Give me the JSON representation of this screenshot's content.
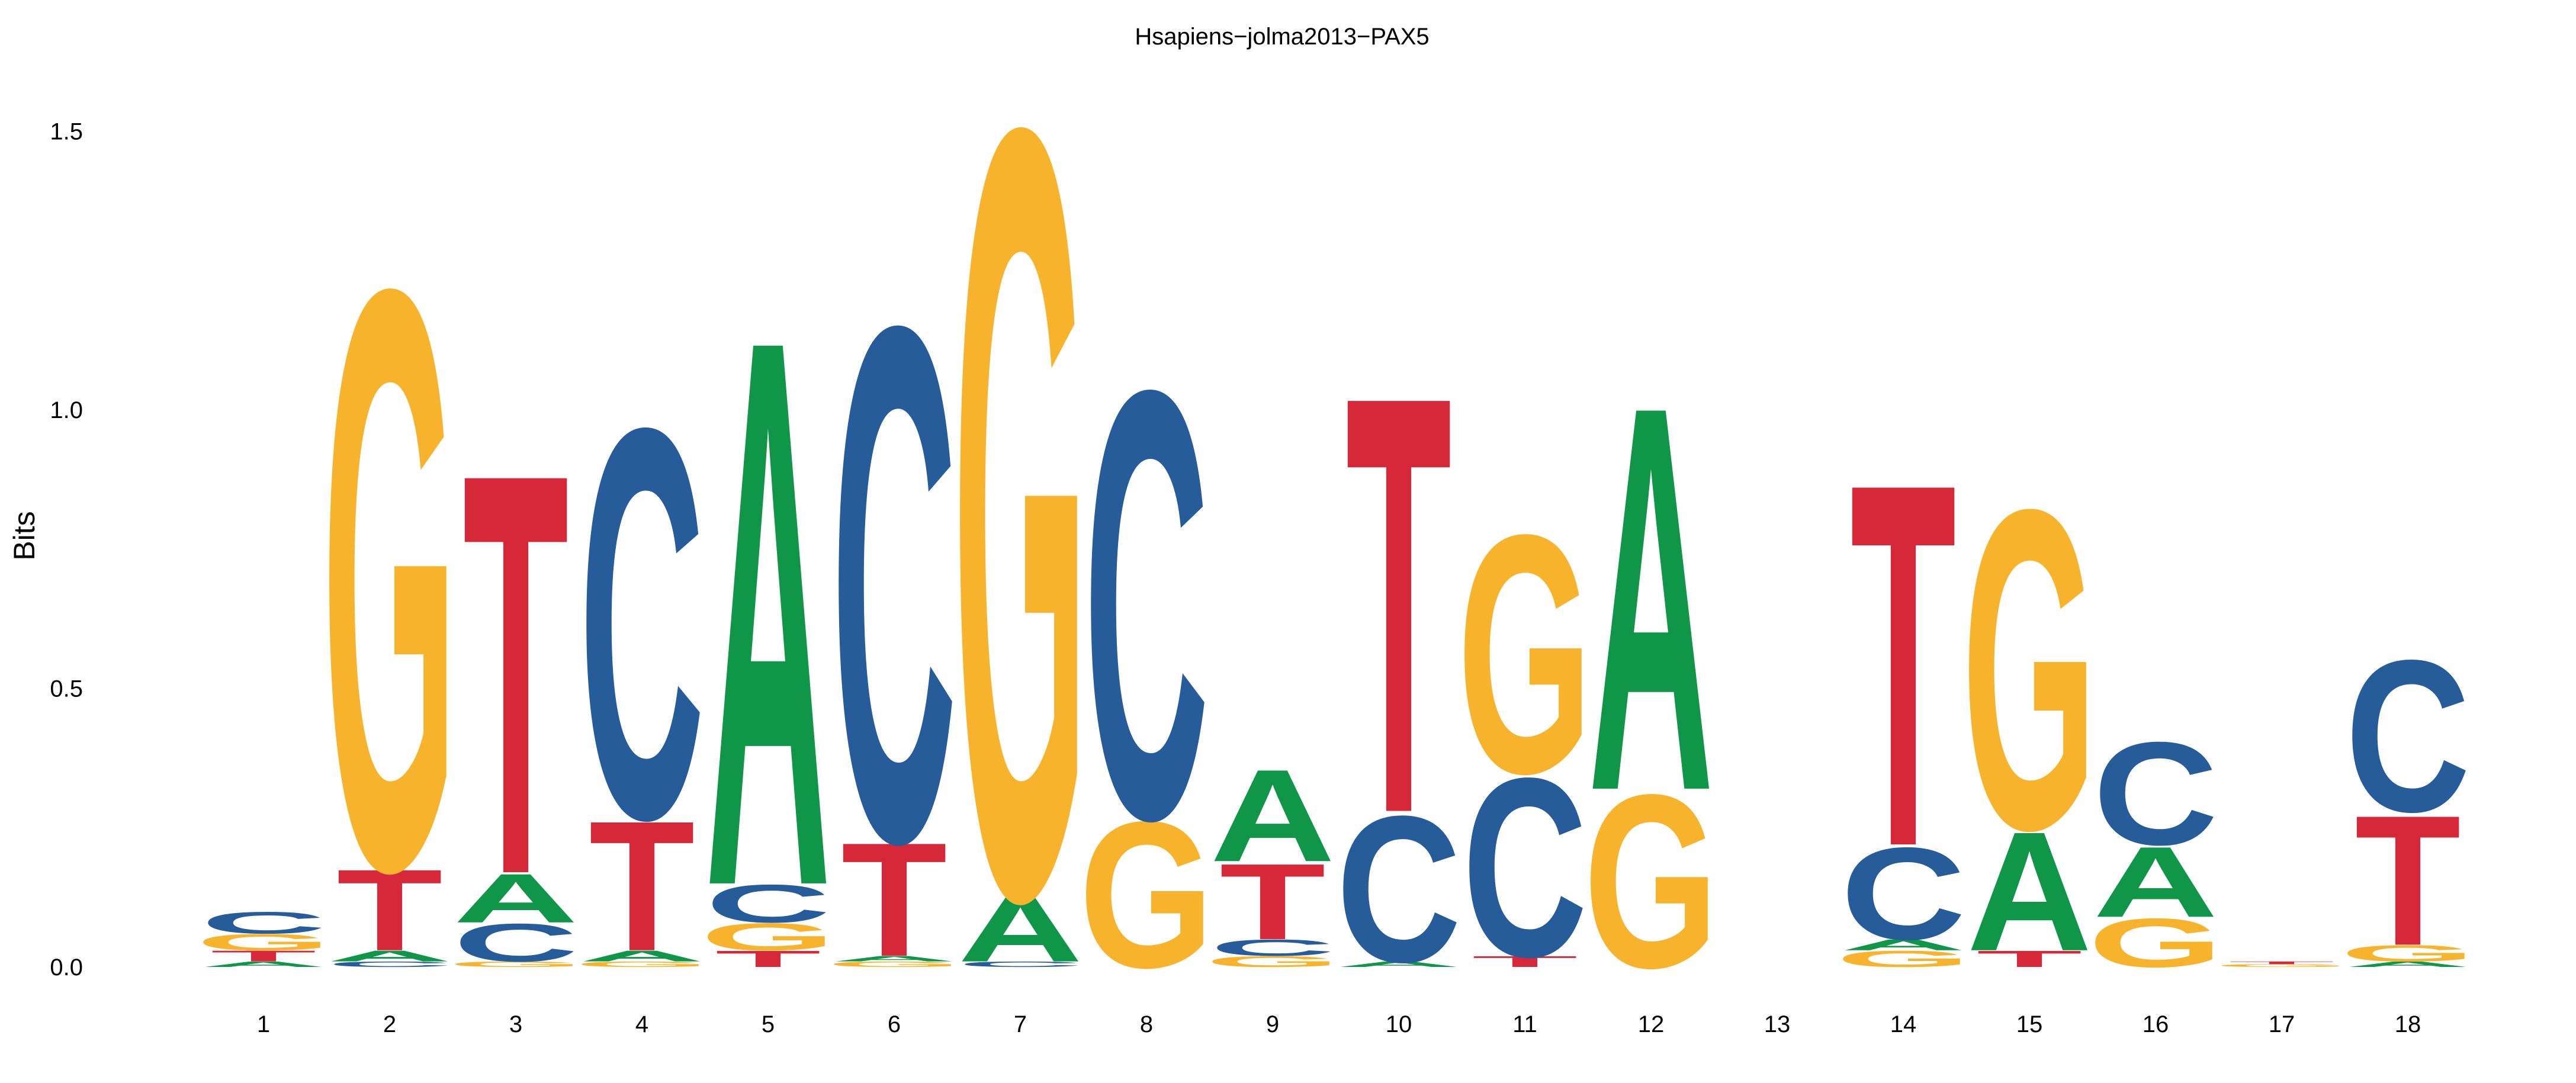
{
  "chart_data": {
    "type": "sequence-logo",
    "title": "Hsapiens−jolma2013−PAX5",
    "ylabel": "Bits",
    "xlabel": "",
    "ylim": [
      0,
      1.6
    ],
    "yticks": [
      0.0,
      0.5,
      1.0,
      1.5
    ],
    "ytick_labels": [
      "0.0",
      "0.5",
      "1.0",
      "1.5"
    ],
    "colors": {
      "A": "#109648",
      "C": "#255C99",
      "G": "#F7B32B",
      "T": "#D62839"
    },
    "positions": [
      {
        "pos": "1",
        "stack": [
          [
            "A",
            0.01
          ],
          [
            "T",
            0.02
          ],
          [
            "G",
            0.03
          ],
          [
            "C",
            0.04
          ]
        ]
      },
      {
        "pos": "2",
        "stack": [
          [
            "C",
            0.01
          ],
          [
            "A",
            0.02
          ],
          [
            "T",
            0.15
          ],
          [
            "G",
            1.07
          ]
        ]
      },
      {
        "pos": "3",
        "stack": [
          [
            "G",
            0.01
          ],
          [
            "C",
            0.07
          ],
          [
            "A",
            0.09
          ],
          [
            "T",
            0.74
          ]
        ]
      },
      {
        "pos": "4",
        "stack": [
          [
            "G",
            0.01
          ],
          [
            "A",
            0.02
          ],
          [
            "T",
            0.24
          ],
          [
            "C",
            0.72
          ]
        ]
      },
      {
        "pos": "5",
        "stack": [
          [
            "T",
            0.03
          ],
          [
            "G",
            0.05
          ],
          [
            "C",
            0.07
          ],
          [
            "A",
            1.01
          ]
        ]
      },
      {
        "pos": "6",
        "stack": [
          [
            "G",
            0.01
          ],
          [
            "A",
            0.01
          ],
          [
            "T",
            0.21
          ],
          [
            "C",
            0.95
          ]
        ]
      },
      {
        "pos": "7",
        "stack": [
          [
            "C",
            0.01
          ],
          [
            "A",
            0.12
          ],
          [
            "G",
            1.42
          ]
        ]
      },
      {
        "pos": "8",
        "stack": [
          [
            "G",
            0.27
          ],
          [
            "C",
            0.79
          ]
        ]
      },
      {
        "pos": "9",
        "stack": [
          [
            "G",
            0.02
          ],
          [
            "C",
            0.03
          ],
          [
            "T",
            0.14
          ],
          [
            "A",
            0.17
          ]
        ]
      },
      {
        "pos": "10",
        "stack": [
          [
            "A",
            0.01
          ],
          [
            "C",
            0.27
          ],
          [
            "T",
            0.77
          ]
        ]
      },
      {
        "pos": "11",
        "stack": [
          [
            "T",
            0.02
          ],
          [
            "C",
            0.33
          ],
          [
            "G",
            0.44
          ]
        ]
      },
      {
        "pos": "12",
        "stack": [
          [
            "G",
            0.32
          ],
          [
            "A",
            0.71
          ]
        ]
      },
      {
        "pos": "13",
        "stack": []
      },
      {
        "pos": "14",
        "stack": [
          [
            "G",
            0.03
          ],
          [
            "A",
            0.02
          ],
          [
            "C",
            0.17
          ],
          [
            "T",
            0.67
          ]
        ]
      },
      {
        "pos": "15",
        "stack": [
          [
            "T",
            0.03
          ],
          [
            "A",
            0.22
          ],
          [
            "G",
            0.59
          ]
        ]
      },
      {
        "pos": "16",
        "stack": [
          [
            "G",
            0.09
          ],
          [
            "A",
            0.13
          ],
          [
            "C",
            0.19
          ]
        ]
      },
      {
        "pos": "17",
        "stack": [
          [
            "G",
            0.005
          ],
          [
            "T",
            0.005
          ]
        ]
      },
      {
        "pos": "18",
        "stack": [
          [
            "A",
            0.01
          ],
          [
            "G",
            0.03
          ],
          [
            "T",
            0.24
          ],
          [
            "C",
            0.28
          ]
        ]
      }
    ]
  }
}
